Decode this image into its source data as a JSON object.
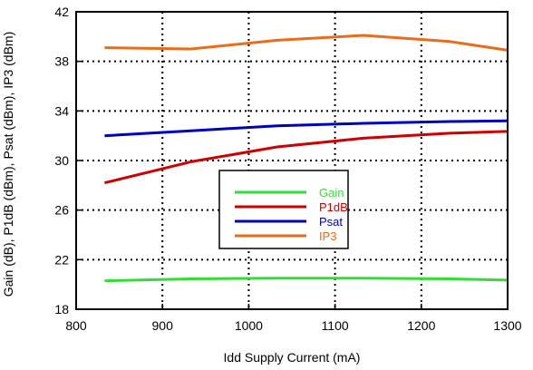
{
  "chart_data": {
    "type": "line",
    "xlabel": "Idd Supply Current (mA)",
    "ylabel": "Gain (dB), P1dB (dBm), Psat (dBm), IP3 (dBm)",
    "xlim": [
      800,
      1300
    ],
    "ylim": [
      18,
      42
    ],
    "xticks": [
      800,
      900,
      1000,
      1100,
      1200,
      1300
    ],
    "yticks": [
      18,
      22,
      26,
      30,
      34,
      38,
      42
    ],
    "grid": true,
    "grid_style": "dotted",
    "legend_position": "center",
    "series": [
      {
        "name": "Gain",
        "color": "#33dd33",
        "x": [
          833,
          933,
          1033,
          1133,
          1233,
          1300
        ],
        "y": [
          20.3,
          20.45,
          20.5,
          20.5,
          20.45,
          20.35
        ]
      },
      {
        "name": "P1dB",
        "color": "#cc0000",
        "x": [
          833,
          933,
          1033,
          1133,
          1233,
          1300
        ],
        "y": [
          28.2,
          29.9,
          31.1,
          31.8,
          32.2,
          32.35
        ]
      },
      {
        "name": "Psat",
        "color": "#0000bb",
        "x": [
          833,
          933,
          1033,
          1133,
          1233,
          1300
        ],
        "y": [
          32.0,
          32.4,
          32.8,
          33.0,
          33.15,
          33.2
        ]
      },
      {
        "name": "IP3",
        "color": "#e86c1a",
        "x": [
          833,
          933,
          1033,
          1133,
          1233,
          1300
        ],
        "y": [
          39.1,
          39.0,
          39.7,
          40.1,
          39.6,
          38.9
        ]
      }
    ]
  }
}
